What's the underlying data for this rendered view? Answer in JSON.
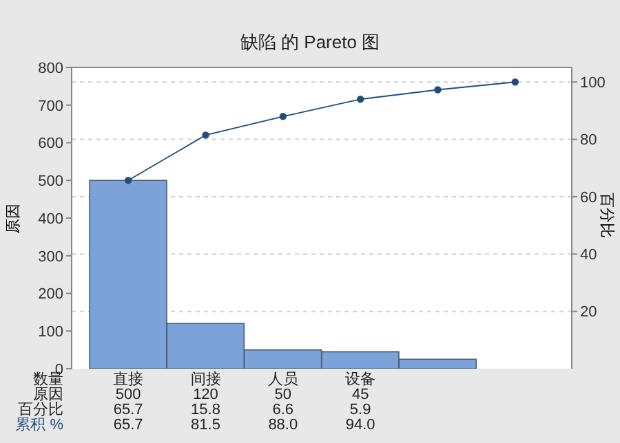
{
  "chart_data": {
    "type": "bar",
    "title": "缺陷 的 Pareto 图",
    "ylabel": "原因",
    "y2label": "百分比",
    "legend_title": "数量",
    "categories": [
      "直接",
      "间接",
      "人员",
      "设备",
      null,
      null
    ],
    "series": [
      {
        "name": "原因",
        "color": "#7ba3d9",
        "values": [
          500,
          120,
          50,
          45,
          25,
          null
        ],
        "value_labels": [
          "500",
          "120",
          "50",
          "45",
          null,
          null
        ]
      },
      {
        "name": "累积 %",
        "type": "line",
        "axis": "y2",
        "color": "#1f4e79",
        "values": [
          65.7,
          81.5,
          88.0,
          94.0,
          97.3,
          100
        ],
        "value_labels": [
          "65.7",
          "81.5",
          "88.0",
          "94.0",
          null,
          null
        ]
      }
    ],
    "annotations": [
      "百分比",
      "65.7",
      "15.8",
      "6.6",
      "5.9"
    ],
    "ylim": [
      0,
      800
    ],
    "yticks": [
      0,
      100,
      200,
      300,
      400,
      500,
      600,
      700,
      800
    ],
    "y2lim": [
      0,
      105.1
    ],
    "y2ticks": [
      20,
      40,
      60,
      80,
      100
    ],
    "grid": "y",
    "marker": "circle"
  }
}
